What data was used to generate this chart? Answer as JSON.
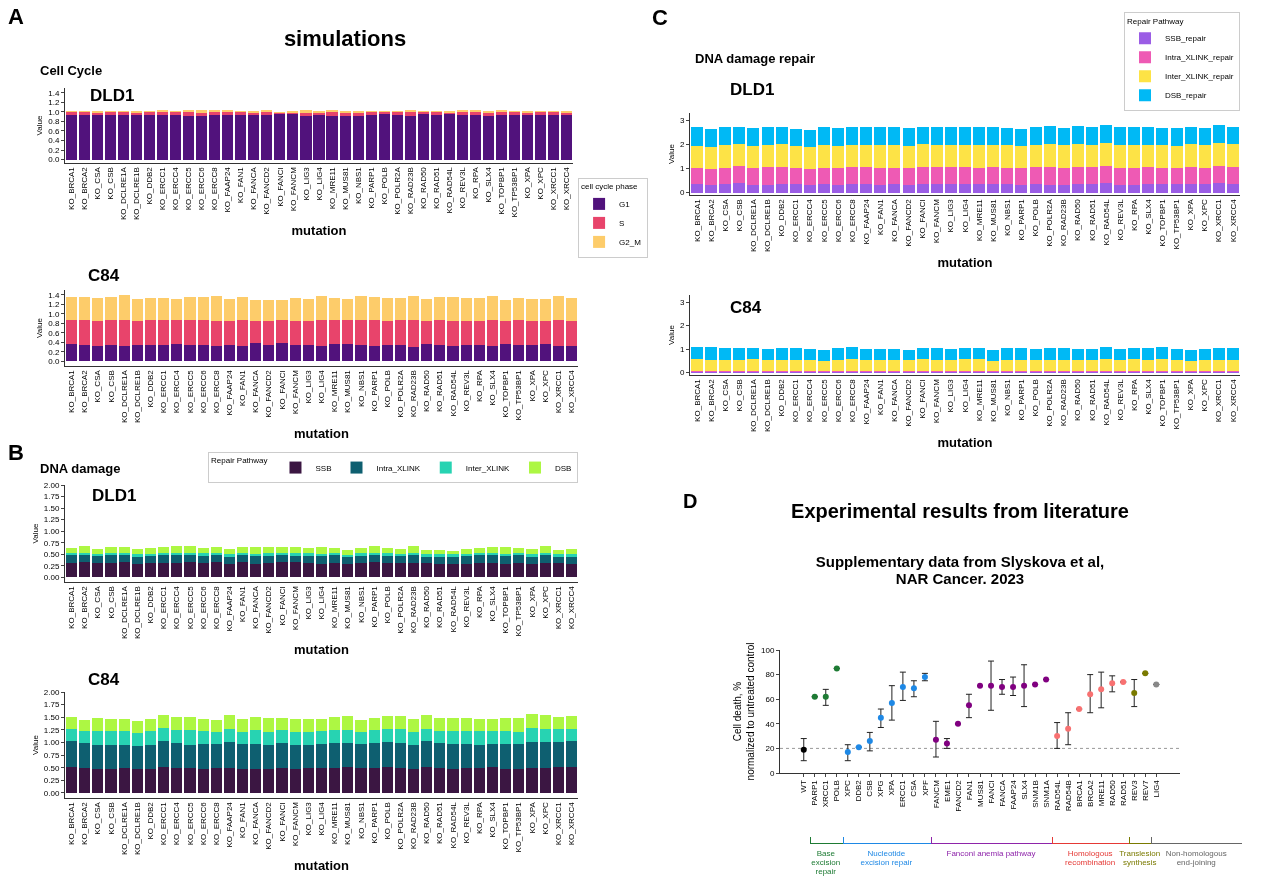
{
  "chart_data": [
    {
      "type": "bar",
      "stacked": true,
      "annotations": [
        "A",
        "simulations",
        "Cell Cycle",
        "DLD1"
      ],
      "xlabel": "mutation",
      "ylabel": "Value",
      "legend": "bottom right",
      "legend_title": "cell cycle phase",
      "categories": [
        "KO_BRCA1",
        "KO_BRCA2",
        "KO_CSA",
        "KO_CSB",
        "KO_DCLRE1A",
        "KO_DCLRE1B",
        "KO_DDB2",
        "KO_ERCC1",
        "KO_ERCC4",
        "KO_ERCC5",
        "KO_ERCC6",
        "KO_ERCC8",
        "KO_FAAP24",
        "KO_FAN1",
        "KO_FANCA",
        "KO_FANCD2",
        "KO_FANCI",
        "KO_FANCM",
        "KO_LIG3",
        "KO_LIG4",
        "KO_MRE11",
        "KO_MUS81",
        "KO_NBS1",
        "KO_PARP1",
        "KO_POLB",
        "KO_POLR2A",
        "KO_RAD23B",
        "KO_RAD50",
        "KO_RAD51",
        "KO_RAD54L",
        "KO_REV3L",
        "KO_RPA",
        "KO_SLX4",
        "KO_TOPBP1",
        "KO_TP53BP1",
        "KO_XPA",
        "KO_XPC",
        "KO_XRCC1",
        "KO_XRCC4"
      ],
      "ylim": [
        -0.07,
        1.5
      ],
      "yticks": [
        {
          "value": 0,
          "label": "0.0"
        },
        {
          "value": 0.2,
          "label": "0.2"
        },
        {
          "value": 0.4,
          "label": "0.4"
        },
        {
          "value": 0.6,
          "label": "0.6"
        },
        {
          "value": 0.8,
          "label": "0.8"
        },
        {
          "value": 1,
          "label": "1.0"
        },
        {
          "value": 1.2,
          "label": "1.2"
        },
        {
          "value": 1.4,
          "label": "1.4"
        }
      ],
      "series": [
        {
          "name": "G1",
          "color": "#51127c",
          "values": [
            0.94,
            0.94,
            0.93,
            0.93,
            0.93,
            0.93,
            0.93,
            0.93,
            0.94,
            0.92,
            0.92,
            0.93,
            0.93,
            0.93,
            0.94,
            0.93,
            0.95,
            0.95,
            0.92,
            0.93,
            0.92,
            0.92,
            0.92,
            0.93,
            0.95,
            0.93,
            0.92,
            0.95,
            0.93,
            0.95,
            0.94,
            0.93,
            0.92,
            0.93,
            0.94,
            0.94,
            0.93,
            0.93,
            0.93
          ]
        },
        {
          "name": "S",
          "color": "#e8446b",
          "values": [
            0.06,
            0.05,
            0.05,
            0.06,
            0.06,
            0.05,
            0.06,
            0.06,
            0.05,
            0.07,
            0.06,
            0.06,
            0.06,
            0.06,
            0.04,
            0.06,
            0.02,
            0.03,
            0.06,
            0.05,
            0.08,
            0.06,
            0.06,
            0.06,
            0.04,
            0.06,
            0.07,
            0.04,
            0.06,
            0.02,
            0.05,
            0.06,
            0.06,
            0.06,
            0.05,
            0.04,
            0.06,
            0.06,
            0.05
          ]
        },
        {
          "name": "G2_M",
          "color": "#fdcc6a",
          "values": [
            0.02,
            0.03,
            0.03,
            0.03,
            0.03,
            0.04,
            0.03,
            0.04,
            0.03,
            0.05,
            0.05,
            0.04,
            0.04,
            0.03,
            0.03,
            0.05,
            0.02,
            0.03,
            0.05,
            0.03,
            0.05,
            0.04,
            0.04,
            0.03,
            0.03,
            0.03,
            0.04,
            0.03,
            0.03,
            0.04,
            0.04,
            0.04,
            0.04,
            0.05,
            0.03,
            0.03,
            0.03,
            0.03,
            0.04
          ]
        }
      ]
    },
    {
      "type": "bar",
      "stacked": true,
      "annotations": [
        "C84"
      ],
      "xlabel": "mutation",
      "ylabel": "Value",
      "categories": [
        "KO_BRCA1",
        "KO_BRCA2",
        "KO_CSA",
        "KO_CSB",
        "KO_DCLRE1A",
        "KO_DCLRE1B",
        "KO_DDB2",
        "KO_ERCC1",
        "KO_ERCC4",
        "KO_ERCC5",
        "KO_ERCC6",
        "KO_ERCC8",
        "KO_FAAP24",
        "KO_FAN1",
        "KO_FANCA",
        "KO_FANCD2",
        "KO_FANCI",
        "KO_FANCM",
        "KO_LIG3",
        "KO_LIG4",
        "KO_MRE11",
        "KO_MUS81",
        "KO_NBS1",
        "KO_PARP1",
        "KO_POLB",
        "KO_POLR2A",
        "KO_RAD23B",
        "KO_RAD50",
        "KO_RAD51",
        "KO_RAD54L",
        "KO_REV3L",
        "KO_RPA",
        "KO_SLX4",
        "KO_TOPBP1",
        "KO_TP53BP1",
        "KO_XPA",
        "KO_XPC",
        "KO_XRCC1",
        "KO_XRCC4"
      ],
      "ylim": [
        -0.1,
        1.5
      ],
      "yticks": [
        {
          "value": 0,
          "label": "0.0"
        },
        {
          "value": 0.2,
          "label": "0.2"
        },
        {
          "value": 0.4,
          "label": "0.4"
        },
        {
          "value": 0.6,
          "label": "0.6"
        },
        {
          "value": 0.8,
          "label": "0.8"
        },
        {
          "value": 1,
          "label": "1.0"
        },
        {
          "value": 1.2,
          "label": "1.2"
        },
        {
          "value": 1.4,
          "label": "1.4"
        }
      ],
      "series": [
        {
          "color": "#51127c",
          "values": [
            0.36,
            0.34,
            0.32,
            0.35,
            0.33,
            0.35,
            0.35,
            0.35,
            0.36,
            0.35,
            0.35,
            0.33,
            0.35,
            0.32,
            0.38,
            0.35,
            0.38,
            0.34,
            0.35,
            0.32,
            0.37,
            0.36,
            0.34,
            0.33,
            0.35,
            0.35,
            0.31,
            0.37,
            0.35,
            0.32,
            0.35,
            0.35,
            0.32,
            0.36,
            0.35,
            0.35,
            0.36,
            0.32,
            0.33
          ]
        },
        {
          "color": "#e8446b",
          "values": [
            0.5,
            0.52,
            0.52,
            0.51,
            0.54,
            0.5,
            0.51,
            0.51,
            0.5,
            0.51,
            0.51,
            0.52,
            0.49,
            0.54,
            0.47,
            0.49,
            0.48,
            0.5,
            0.5,
            0.54,
            0.5,
            0.5,
            0.53,
            0.53,
            0.5,
            0.51,
            0.55,
            0.48,
            0.51,
            0.52,
            0.5,
            0.5,
            0.54,
            0.49,
            0.51,
            0.5,
            0.49,
            0.54,
            0.51
          ]
        },
        {
          "color": "#fdcc6a",
          "values": [
            0.49,
            0.5,
            0.5,
            0.49,
            0.52,
            0.47,
            0.48,
            0.48,
            0.46,
            0.5,
            0.5,
            0.52,
            0.48,
            0.49,
            0.45,
            0.46,
            0.44,
            0.5,
            0.47,
            0.52,
            0.46,
            0.46,
            0.51,
            0.49,
            0.48,
            0.47,
            0.52,
            0.46,
            0.5,
            0.51,
            0.48,
            0.48,
            0.51,
            0.45,
            0.47,
            0.47,
            0.47,
            0.51,
            0.49
          ]
        }
      ]
    },
    {
      "type": "bar",
      "stacked": true,
      "annotations": [
        "B",
        "DNA damage",
        "DLD1"
      ],
      "xlabel": "mutation",
      "ylabel": "Value",
      "legend": "top right",
      "legend_title": "Repair Pathway",
      "categories": [
        "KO_BRCA1",
        "KO_BRCA2",
        "KO_CSA",
        "KO_CSB",
        "KO_DCLRE1A",
        "KO_DCLRE1B",
        "KO_DDB2",
        "KO_ERCC1",
        "KO_ERCC4",
        "KO_ERCC5",
        "KO_ERCC6",
        "KO_ERCC8",
        "KO_FAAP24",
        "KO_FAN1",
        "KO_FANCA",
        "KO_FANCD2",
        "KO_FANCI",
        "KO_FANCM",
        "KO_LIG3",
        "KO_LIG4",
        "KO_MRE11",
        "KO_MUS81",
        "KO_NBS1",
        "KO_PARP1",
        "KO_POLB",
        "KO_POLR2A",
        "KO_RAD23B",
        "KO_RAD50",
        "KO_RAD51",
        "KO_RAD54L",
        "KO_REV3L",
        "KO_RPA",
        "KO_SLX4",
        "KO_TOPBP1",
        "KO_TP53BP1",
        "KO_XPA",
        "KO_XPC",
        "KO_XRCC1",
        "KO_XRCC4"
      ],
      "ylim": [
        -0.1,
        2.0
      ],
      "yticks": [
        {
          "value": 0,
          "label": "0.00"
        },
        {
          "value": 0.25,
          "label": "0.25"
        },
        {
          "value": 0.5,
          "label": "0.50"
        },
        {
          "value": 0.75,
          "label": "0.75"
        },
        {
          "value": 1,
          "label": "1.00"
        },
        {
          "value": 1.25,
          "label": "1.25"
        },
        {
          "value": 1.5,
          "label": "1.50"
        },
        {
          "value": 1.75,
          "label": "1.75"
        },
        {
          "value": 2,
          "label": "2.00"
        }
      ],
      "series": [
        {
          "name": "SSB",
          "color": "#3b1642",
          "values": [
            0.32,
            0.33,
            0.31,
            0.32,
            0.33,
            0.3,
            0.31,
            0.32,
            0.32,
            0.33,
            0.32,
            0.33,
            0.3,
            0.33,
            0.3,
            0.32,
            0.33,
            0.33,
            0.32,
            0.3,
            0.32,
            0.29,
            0.32,
            0.33,
            0.32,
            0.31,
            0.32,
            0.31,
            0.3,
            0.3,
            0.3,
            0.32,
            0.32,
            0.3,
            0.32,
            0.3,
            0.32,
            0.31,
            0.3
          ]
        },
        {
          "name": "Intra_XLINK",
          "color": "#0e5f70",
          "values": [
            0.16,
            0.16,
            0.15,
            0.16,
            0.16,
            0.15,
            0.16,
            0.16,
            0.16,
            0.16,
            0.15,
            0.16,
            0.15,
            0.16,
            0.16,
            0.15,
            0.16,
            0.14,
            0.15,
            0.16,
            0.16,
            0.16,
            0.15,
            0.16,
            0.15,
            0.15,
            0.16,
            0.14,
            0.14,
            0.15,
            0.16,
            0.16,
            0.16,
            0.16,
            0.16,
            0.15,
            0.16,
            0.14,
            0.15
          ]
        },
        {
          "name": "Inter_XLINK",
          "color": "#27d3b2",
          "values": [
            0.04,
            0.04,
            0.05,
            0.04,
            0.04,
            0.05,
            0.04,
            0.04,
            0.04,
            0.04,
            0.05,
            0.04,
            0.05,
            0.04,
            0.04,
            0.05,
            0.04,
            0.06,
            0.05,
            0.04,
            0.04,
            0.04,
            0.05,
            0.04,
            0.05,
            0.05,
            0.04,
            0.06,
            0.06,
            0.05,
            0.04,
            0.04,
            0.04,
            0.04,
            0.04,
            0.05,
            0.04,
            0.06,
            0.05
          ]
        },
        {
          "name": "DSB",
          "color": "#adf743",
          "values": [
            0.11,
            0.14,
            0.11,
            0.13,
            0.13,
            0.12,
            0.12,
            0.14,
            0.17,
            0.14,
            0.11,
            0.12,
            0.11,
            0.12,
            0.15,
            0.14,
            0.13,
            0.13,
            0.11,
            0.15,
            0.11,
            0.1,
            0.12,
            0.14,
            0.12,
            0.1,
            0.15,
            0.08,
            0.1,
            0.08,
            0.11,
            0.11,
            0.13,
            0.16,
            0.12,
            0.11,
            0.15,
            0.09,
            0.12
          ]
        }
      ]
    },
    {
      "type": "bar",
      "stacked": true,
      "annotations": [
        "C84"
      ],
      "xlabel": "mutation",
      "ylabel": "Value",
      "categories": [
        "KO_BRCA1",
        "KO_BRCA2",
        "KO_CSA",
        "KO_CSB",
        "KO_DCLRE1A",
        "KO_DCLRE1B",
        "KO_DDB2",
        "KO_ERCC1",
        "KO_ERCC4",
        "KO_ERCC5",
        "KO_ERCC6",
        "KO_ERCC8",
        "KO_FAAP24",
        "KO_FAN1",
        "KO_FANCA",
        "KO_FANCD2",
        "KO_FANCI",
        "KO_FANCM",
        "KO_LIG3",
        "KO_LIG4",
        "KO_MRE11",
        "KO_MUS81",
        "KO_NBS1",
        "KO_PARP1",
        "KO_POLB",
        "KO_POLR2A",
        "KO_RAD23B",
        "KO_RAD50",
        "KO_RAD51",
        "KO_RAD54L",
        "KO_REV3L",
        "KO_RPA",
        "KO_SLX4",
        "KO_TOPBP1",
        "KO_TP53BP1",
        "KO_XPA",
        "KO_XPC",
        "KO_XRCC1",
        "KO_XRCC4"
      ],
      "ylim": [
        -0.1,
        2.0
      ],
      "yticks": [
        {
          "value": 0,
          "label": "0.00"
        },
        {
          "value": 0.25,
          "label": "0.25"
        },
        {
          "value": 0.5,
          "label": "0.50"
        },
        {
          "value": 0.75,
          "label": "0.75"
        },
        {
          "value": 1,
          "label": "1.00"
        },
        {
          "value": 1.25,
          "label": "1.25"
        },
        {
          "value": 1.5,
          "label": "1.50"
        },
        {
          "value": 1.75,
          "label": "1.75"
        },
        {
          "value": 2,
          "label": "2.00"
        }
      ],
      "series": [
        {
          "color": "#3b1642",
          "values": [
            0.52,
            0.5,
            0.48,
            0.48,
            0.49,
            0.47,
            0.48,
            0.52,
            0.5,
            0.49,
            0.48,
            0.49,
            0.5,
            0.48,
            0.47,
            0.48,
            0.5,
            0.48,
            0.49,
            0.49,
            0.5,
            0.51,
            0.49,
            0.5,
            0.51,
            0.49,
            0.48,
            0.51,
            0.49,
            0.48,
            0.49,
            0.49,
            0.51,
            0.47,
            0.48,
            0.5,
            0.49,
            0.51,
            0.51
          ]
        },
        {
          "color": "#0e5f70",
          "values": [
            0.5,
            0.49,
            0.48,
            0.48,
            0.47,
            0.47,
            0.48,
            0.5,
            0.49,
            0.47,
            0.49,
            0.48,
            0.5,
            0.49,
            0.5,
            0.48,
            0.49,
            0.47,
            0.47,
            0.48,
            0.49,
            0.47,
            0.48,
            0.49,
            0.5,
            0.5,
            0.48,
            0.51,
            0.49,
            0.49,
            0.48,
            0.47,
            0.46,
            0.5,
            0.49,
            0.5,
            0.51,
            0.5,
            0.51
          ]
        },
        {
          "color": "#27d3b2",
          "values": [
            0.25,
            0.24,
            0.26,
            0.26,
            0.26,
            0.24,
            0.26,
            0.26,
            0.26,
            0.28,
            0.25,
            0.24,
            0.26,
            0.24,
            0.27,
            0.25,
            0.26,
            0.26,
            0.25,
            0.25,
            0.26,
            0.27,
            0.24,
            0.25,
            0.26,
            0.27,
            0.25,
            0.24,
            0.25,
            0.25,
            0.25,
            0.26,
            0.25,
            0.25,
            0.24,
            0.28,
            0.27,
            0.26,
            0.24
          ]
        },
        {
          "color": "#adf743",
          "values": [
            0.24,
            0.22,
            0.26,
            0.24,
            0.25,
            0.25,
            0.24,
            0.27,
            0.26,
            0.27,
            0.25,
            0.24,
            0.28,
            0.26,
            0.26,
            0.27,
            0.24,
            0.26,
            0.26,
            0.24,
            0.26,
            0.27,
            0.24,
            0.25,
            0.26,
            0.27,
            0.25,
            0.29,
            0.25,
            0.27,
            0.27,
            0.25,
            0.24,
            0.26,
            0.27,
            0.28,
            0.27,
            0.24,
            0.26
          ]
        }
      ]
    },
    {
      "type": "bar",
      "stacked": true,
      "annotations": [
        "C",
        "DNA damage repair",
        "DLD1"
      ],
      "xlabel": "mutation",
      "ylabel": "Value",
      "legend": "top right",
      "legend_title": "Repair Pathway",
      "categories": [
        "KO_BRCA1",
        "KO_BRCA2",
        "KO_CSA",
        "KO_CSB",
        "KO_DCLRE1A",
        "KO_DCLRE1B",
        "KO_DDB2",
        "KO_ERCC1",
        "KO_ERCC4",
        "KO_ERCC5",
        "KO_ERCC6",
        "KO_ERCC8",
        "KO_FAAP24",
        "KO_FAN1",
        "KO_FANCA",
        "KO_FANCD2",
        "KO_FANCI",
        "KO_FANCM",
        "KO_LIG3",
        "KO_LIG4",
        "KO_MRE11",
        "KO_MUS81",
        "KO_NBS1",
        "KO_PARP1",
        "KO_POLB",
        "KO_POLR2A",
        "KO_RAD23B",
        "KO_RAD50",
        "KO_RAD51",
        "KO_RAD54L",
        "KO_REV3L",
        "KO_RPA",
        "KO_SLX4",
        "KO_TOPBP1",
        "KO_TP53BP1",
        "KO_XPA",
        "KO_XPC",
        "KO_XRCC1",
        "KO_XRCC4"
      ],
      "ylim": [
        -0.1,
        3.3
      ],
      "yticks": [
        0,
        1,
        2,
        3
      ],
      "series": [
        {
          "name": "SSB_repair",
          "color": "#9b5de5",
          "values": [
            0.35,
            0.33,
            0.34,
            0.38,
            0.33,
            0.33,
            0.37,
            0.34,
            0.33,
            0.34,
            0.32,
            0.34,
            0.34,
            0.33,
            0.34,
            0.3,
            0.37,
            0.34,
            0.35,
            0.37,
            0.34,
            0.35,
            0.35,
            0.31,
            0.34,
            0.33,
            0.33,
            0.34,
            0.35,
            0.39,
            0.33,
            0.33,
            0.36,
            0.37,
            0.34,
            0.37,
            0.34,
            0.38,
            0.37
          ]
        },
        {
          "name": "Intra_XLINK_repair",
          "color": "#ee5ab4",
          "values": [
            0.68,
            0.66,
            0.7,
            0.72,
            0.69,
            0.73,
            0.71,
            0.68,
            0.66,
            0.69,
            0.68,
            0.72,
            0.72,
            0.71,
            0.7,
            0.72,
            0.69,
            0.71,
            0.71,
            0.69,
            0.7,
            0.71,
            0.69,
            0.69,
            0.72,
            0.73,
            0.69,
            0.72,
            0.71,
            0.71,
            0.7,
            0.7,
            0.7,
            0.67,
            0.69,
            0.69,
            0.7,
            0.72,
            0.7
          ]
        },
        {
          "name": "Inter_XLINK_repair",
          "color": "#fde346",
          "values": [
            0.92,
            0.91,
            0.93,
            0.92,
            0.92,
            0.92,
            0.93,
            0.91,
            0.91,
            0.94,
            0.94,
            0.93,
            0.93,
            0.92,
            0.93,
            0.92,
            0.94,
            0.93,
            0.93,
            0.92,
            0.93,
            0.93,
            0.93,
            0.92,
            0.93,
            0.94,
            0.94,
            0.94,
            0.93,
            0.94,
            0.93,
            0.94,
            0.92,
            0.92,
            0.91,
            0.94,
            0.92,
            0.96,
            0.93
          ]
        },
        {
          "name": "DSB_repair",
          "color": "#00b9f5",
          "values": [
            0.75,
            0.73,
            0.73,
            0.72,
            0.72,
            0.73,
            0.73,
            0.72,
            0.71,
            0.75,
            0.72,
            0.74,
            0.74,
            0.74,
            0.73,
            0.72,
            0.74,
            0.72,
            0.74,
            0.73,
            0.73,
            0.75,
            0.7,
            0.73,
            0.73,
            0.77,
            0.73,
            0.76,
            0.71,
            0.76,
            0.74,
            0.76,
            0.73,
            0.71,
            0.73,
            0.74,
            0.73,
            0.75,
            0.73
          ]
        }
      ]
    },
    {
      "type": "bar",
      "stacked": true,
      "annotations": [
        "C84"
      ],
      "xlabel": "mutation",
      "ylabel": "Value",
      "categories": [
        "KO_BRCA1",
        "KO_BRCA2",
        "KO_CSA",
        "KO_CSB",
        "KO_DCLRE1A",
        "KO_DCLRE1B",
        "KO_DDB2",
        "KO_ERCC1",
        "KO_ERCC4",
        "KO_ERCC5",
        "KO_ERCC6",
        "KO_ERCC8",
        "KO_FAAP24",
        "KO_FAN1",
        "KO_FANCA",
        "KO_FANCD2",
        "KO_FANCI",
        "KO_FANCM",
        "KO_LIG3",
        "KO_LIG4",
        "KO_MRE11",
        "KO_MUS81",
        "KO_NBS1",
        "KO_PARP1",
        "KO_POLB",
        "KO_POLR2A",
        "KO_RAD23B",
        "KO_RAD50",
        "KO_RAD51",
        "KO_RAD54L",
        "KO_REV3L",
        "KO_RPA",
        "KO_SLX4",
        "KO_TOPBP1",
        "KO_TP53BP1",
        "KO_XPA",
        "KO_XPC",
        "KO_XRCC1",
        "KO_XRCC4"
      ],
      "ylim": [
        -0.1,
        3.3
      ],
      "yticks": [
        0,
        1,
        2,
        3
      ],
      "series": [
        {
          "color": "#9b5de5",
          "values": [
            0.01,
            0.01,
            0.01,
            0.01,
            0.01,
            0.01,
            0.01,
            0.01,
            0.01,
            0.01,
            0.01,
            0.01,
            0.01,
            0.01,
            0.01,
            0.01,
            0.01,
            0.01,
            0.01,
            0.01,
            0.01,
            0.01,
            0.01,
            0.01,
            0.01,
            0.01,
            0.01,
            0.01,
            0.01,
            0.01,
            0.01,
            0.01,
            0.01,
            0.01,
            0.01,
            0.01,
            0.01,
            0.01,
            0.01
          ]
        },
        {
          "color": "#ee5ab4",
          "values": [
            0.05,
            0.05,
            0.05,
            0.05,
            0.05,
            0.05,
            0.05,
            0.05,
            0.05,
            0.05,
            0.05,
            0.05,
            0.05,
            0.05,
            0.05,
            0.05,
            0.05,
            0.05,
            0.05,
            0.05,
            0.05,
            0.05,
            0.05,
            0.05,
            0.05,
            0.05,
            0.05,
            0.05,
            0.05,
            0.05,
            0.05,
            0.05,
            0.05,
            0.05,
            0.05,
            0.05,
            0.05,
            0.05,
            0.05
          ]
        },
        {
          "color": "#fde346",
          "values": [
            0.51,
            0.49,
            0.48,
            0.49,
            0.5,
            0.47,
            0.47,
            0.48,
            0.46,
            0.44,
            0.49,
            0.51,
            0.47,
            0.48,
            0.47,
            0.47,
            0.5,
            0.49,
            0.48,
            0.5,
            0.5,
            0.45,
            0.48,
            0.49,
            0.47,
            0.48,
            0.48,
            0.48,
            0.47,
            0.5,
            0.47,
            0.5,
            0.48,
            0.5,
            0.47,
            0.45,
            0.47,
            0.48,
            0.49
          ]
        },
        {
          "color": "#00b9f5",
          "values": [
            0.51,
            0.52,
            0.49,
            0.5,
            0.49,
            0.48,
            0.5,
            0.49,
            0.47,
            0.48,
            0.5,
            0.51,
            0.48,
            0.48,
            0.47,
            0.45,
            0.49,
            0.5,
            0.47,
            0.49,
            0.49,
            0.46,
            0.51,
            0.5,
            0.47,
            0.5,
            0.5,
            0.47,
            0.49,
            0.51,
            0.49,
            0.5,
            0.5,
            0.52,
            0.48,
            0.46,
            0.47,
            0.5,
            0.48
          ]
        }
      ]
    },
    {
      "type": "scatter",
      "title": "Experimental results from literature",
      "subtitle": "Supplementary data from Slyskova et al, NAR Cancer. 2023",
      "ylabel": "Cell death, %\nnormalized to untreated control",
      "marker": "circle",
      "annotations": [
        "D",
        "Base excision repair",
        "Nucleotide excision repair",
        "Fanconi anemia pathway",
        "Homologous recombination",
        "Translesion synthesis",
        "Non-homologous end-joining"
      ],
      "categories": [
        "WT",
        "PARP1",
        "XRCC1",
        "POLB",
        "XPC",
        "DDB2",
        "CSB",
        "XPG",
        "XPA",
        "ERCC1",
        "CSA",
        "XPF",
        "FANCM",
        "EME1",
        "FANCD2",
        "FAN1",
        "MUS81",
        "FANCI",
        "FANCA",
        "FAAP24",
        "SLX4",
        "SNM1B",
        "SNM1A",
        "RAD54L",
        "RAD54B",
        "BRCA1",
        "BRCA2",
        "MRE11",
        "RAD50",
        "RAD51",
        "REV3",
        "REV7",
        "LIG4"
      ],
      "ylim": [
        0,
        100
      ],
      "yticks": [
        0,
        20,
        40,
        60,
        80,
        100
      ],
      "ref_lines": [
        {
          "axis": "y",
          "value": 20,
          "color": "#999999",
          "line_style": "dotted"
        }
      ],
      "series": [
        {
          "colors": [
            "#000000",
            "#1e7b34",
            "#1e7b34",
            "#1e7b34",
            "#1e88e5",
            "#1e88e5",
            "#1e88e5",
            "#1e88e5",
            "#1e88e5",
            "#1e88e5",
            "#1e88e5",
            "#1e88e5",
            "#800080",
            "#800080",
            "#800080",
            "#800080",
            "#800080",
            "#800080",
            "#800080",
            "#800080",
            "#800080",
            "#800080",
            "#800080",
            "#f87171",
            "#f87171",
            "#f87171",
            "#f87171",
            "#f87171",
            "#f87171",
            "#f87171",
            "#7a7a00",
            "#7a7a00",
            "#888888"
          ],
          "values": [
            19,
            62,
            62,
            85,
            17,
            21,
            26,
            45,
            57,
            70,
            69,
            78,
            27,
            24,
            40,
            55,
            71,
            71,
            70,
            70,
            71,
            72,
            76,
            30,
            36,
            52,
            64,
            68,
            73,
            74,
            65,
            81,
            72
          ],
          "errors": [
            [
              10,
              28
            ],
            null,
            [
              55,
              68
            ],
            null,
            [
              10,
              23
            ],
            null,
            [
              18,
              33
            ],
            [
              37,
              52
            ],
            [
              43,
              71
            ],
            [
              59,
              82
            ],
            [
              62,
              75
            ],
            [
              75,
              81
            ],
            [
              13,
              42
            ],
            [
              20,
              28
            ],
            null,
            [
              45,
              64
            ],
            null,
            [
              51,
              91
            ],
            [
              64,
              76
            ],
            [
              63,
              78
            ],
            [
              54,
              88
            ],
            null,
            null,
            [
              20,
              41
            ],
            [
              23,
              49
            ],
            null,
            [
              49,
              80
            ],
            [
              53,
              82
            ],
            [
              66,
              79
            ],
            null,
            [
              54,
              76
            ],
            null,
            null
          ]
        }
      ]
    }
  ]
}
